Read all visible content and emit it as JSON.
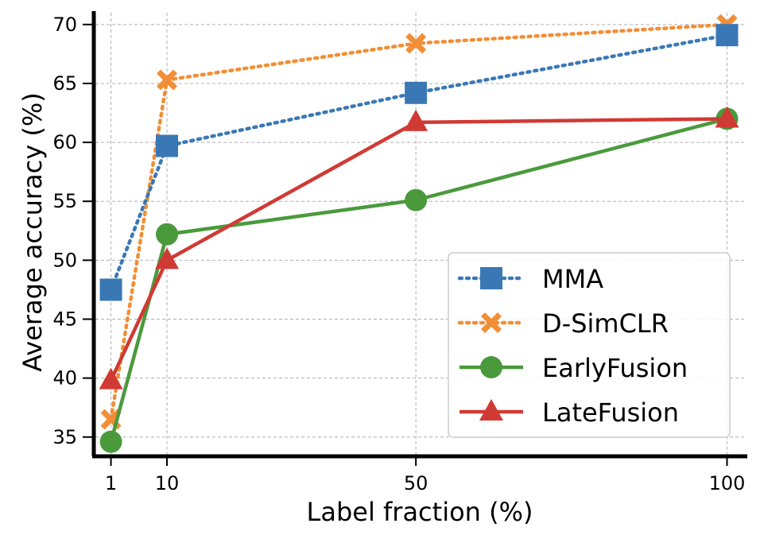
{
  "chart_data": {
    "type": "line",
    "title": "",
    "xlabel": "Label fraction (%)",
    "ylabel": "Average accuracy (%)",
    "x": [
      1,
      10,
      50,
      100
    ],
    "xticks": [
      "1",
      "10",
      "50",
      "100"
    ],
    "yticks": [
      "35",
      "40",
      "45",
      "50",
      "55",
      "60",
      "65",
      "70"
    ],
    "xlim": [
      -1.5,
      103
    ],
    "ylim": [
      33.5,
      71
    ],
    "grid": true,
    "legend_position": "lower-right",
    "series": [
      {
        "name": "MMA",
        "values": [
          47.5,
          59.7,
          64.2,
          69.1
        ],
        "color": "#3a78b5",
        "line_style": "dotted",
        "marker": "square"
      },
      {
        "name": "D-SimCLR",
        "values": [
          36.5,
          65.3,
          68.4,
          70.0
        ],
        "color": "#f28e35",
        "line_style": "dotted",
        "marker": "x"
      },
      {
        "name": "EarlyFusion",
        "values": [
          34.6,
          52.2,
          55.1,
          62.0
        ],
        "color": "#4a9a3c",
        "line_style": "solid",
        "marker": "circle"
      },
      {
        "name": "LateFusion",
        "values": [
          39.8,
          50.0,
          61.7,
          62.0
        ],
        "color": "#d03a34",
        "line_style": "solid",
        "marker": "triangle"
      }
    ]
  }
}
